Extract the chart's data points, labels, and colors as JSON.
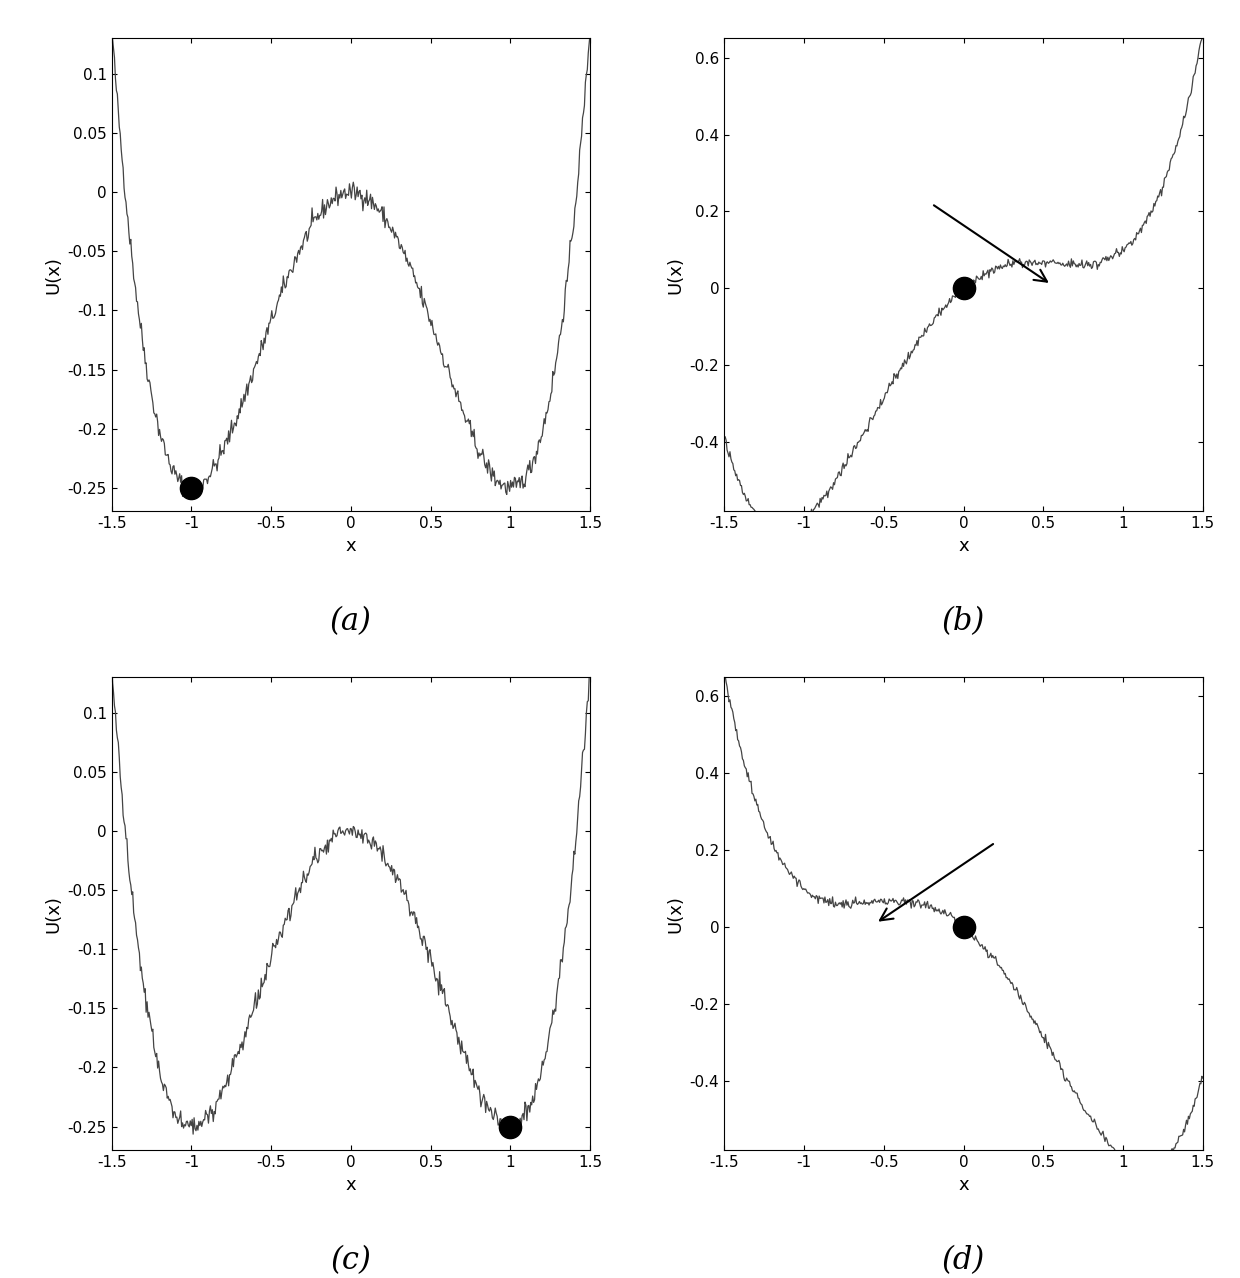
{
  "x_range": [
    -1.5,
    1.5
  ],
  "n_points": 500,
  "noise_std": 0.004,
  "a": 1.0,
  "b": 1.0,
  "tilt_b": 0.35,
  "yticks_a": [
    -0.25,
    -0.2,
    -0.15,
    -0.1,
    -0.05,
    0.0,
    0.05,
    0.1
  ],
  "yticks_b": [
    -0.4,
    -0.2,
    0.0,
    0.2,
    0.4,
    0.6
  ],
  "ball_a": [
    -1.0,
    -0.25
  ],
  "ball_c": [
    1.0,
    -0.25
  ],
  "ball_b": [
    0.0,
    0.0
  ],
  "ball_d": [
    0.0,
    0.0
  ],
  "ball_markersize": 16,
  "ball_color": "black",
  "line_color": "#444444",
  "line_width": 0.9,
  "label_fontsize": 13,
  "tick_fontsize": 11,
  "sublabel_fontsize": 22,
  "xlabel": "x",
  "ylabel": "U(x)",
  "background_color": "#ffffff",
  "seed": 42
}
